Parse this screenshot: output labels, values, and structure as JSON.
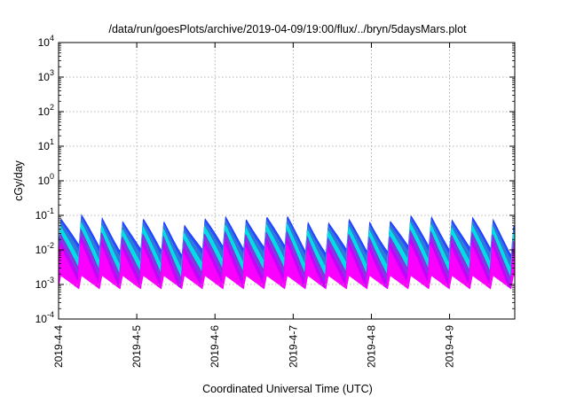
{
  "chart_data": {
    "type": "area",
    "title": "/data/run/goesPlots/archive/2019-04-09/19:00/flux/../bryn/5daysMars.plot",
    "xlabel": "Coordinated Universal Time (UTC)",
    "ylabel": "cGy/day",
    "yscale": "log",
    "ylim": [
      0.0001,
      10000
    ],
    "xlim": [
      "2019-04-04",
      "2019-04-09 20:00"
    ],
    "grid": true,
    "x_ticks": [
      "2019-4-4",
      "2019-4-5",
      "2019-4-6",
      "2019-4-7",
      "2019-4-8",
      "2019-4-9"
    ],
    "y_ticks": [
      {
        "base": "10",
        "exp": "-4"
      },
      {
        "base": "10",
        "exp": "-3"
      },
      {
        "base": "10",
        "exp": "-2"
      },
      {
        "base": "10",
        "exp": "-1"
      },
      {
        "base": "10",
        "exp": "0"
      },
      {
        "base": "10",
        "exp": "1"
      },
      {
        "base": "10",
        "exp": "2"
      },
      {
        "base": "10",
        "exp": "3"
      },
      {
        "base": "10",
        "exp": "4"
      }
    ],
    "oscillation": {
      "cycles_per_day": 3.8,
      "trough_value": 0.0008,
      "peak_value": 0.08
    },
    "series": [
      {
        "color": "#ff00ff",
        "peak": 0.012,
        "trough": 0.0008
      },
      {
        "color": "#c800ff",
        "peak": 0.018,
        "trough": 0.0013
      },
      {
        "color": "#8a2be2",
        "peak": 0.028,
        "trough": 0.0022
      },
      {
        "color": "#00e5e5",
        "peak": 0.045,
        "trough": 0.004
      },
      {
        "color": "#2f7dd8",
        "peak": 0.06,
        "trough": 0.007
      },
      {
        "color": "#1a3cff",
        "peak": 0.075,
        "trough": 0.01
      }
    ]
  }
}
